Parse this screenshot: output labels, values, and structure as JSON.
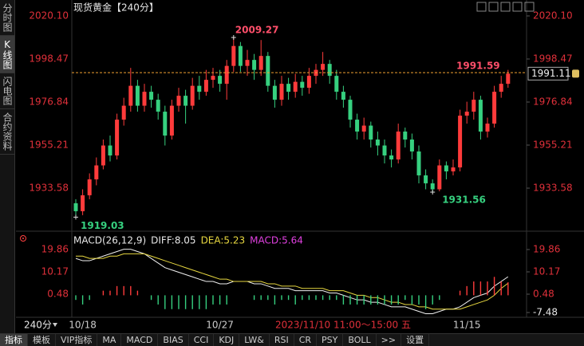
{
  "chart_data": [
    {
      "type": "candlestick",
      "title": "现货黄金【240分】",
      "categories": [
        null,
        "10/18",
        null,
        null,
        null,
        null,
        null,
        null,
        null,
        null,
        null,
        null,
        null,
        null,
        null,
        null,
        null,
        null,
        null,
        null,
        null,
        "10/27",
        null,
        null,
        null,
        null,
        null,
        null,
        null,
        null,
        null,
        null,
        null,
        null,
        null,
        null,
        null,
        null,
        null,
        null,
        null,
        null,
        null,
        null,
        null,
        null,
        null,
        null,
        null,
        null,
        null,
        null,
        null,
        null,
        null,
        null,
        null,
        "11/15",
        null,
        null,
        null,
        null,
        null,
        null
      ],
      "open": [
        1926,
        1922,
        1930,
        1938,
        1945,
        1955,
        1950,
        1968,
        1975,
        1985,
        1975,
        1982,
        1978,
        1972,
        1960,
        1975,
        1980,
        1975,
        1985,
        1982,
        1988,
        1990,
        1986,
        1995,
        2005,
        1995,
        1998,
        1993,
        2000,
        1985,
        1978,
        1986,
        1982,
        1987,
        1984,
        1990,
        1993,
        1996,
        1990,
        1982,
        1978,
        1968,
        1962,
        1965,
        1958,
        1955,
        1950,
        1948,
        1962,
        1958,
        1952,
        1940,
        1936,
        1933,
        1945,
        1942,
        1944,
        1970,
        1972,
        1978,
        1962,
        1966,
        1982,
        1986
      ],
      "high": [
        1928,
        1933,
        1941,
        1949,
        1958,
        1960,
        1971,
        1979,
        1994,
        1988,
        1986,
        1985,
        1981,
        1975,
        1978,
        1984,
        1983,
        1989,
        1990,
        1993,
        1994,
        1993,
        1998,
        2009.27,
        2007,
        2003,
        2001,
        2008,
        2002,
        1988,
        1990,
        1989,
        1991,
        1990,
        1994,
        1996,
        2002,
        1998,
        1993,
        1985,
        1980,
        1971,
        1969,
        1967,
        1962,
        1958,
        1953,
        1966,
        1964,
        1961,
        1955,
        1943,
        1938,
        1948,
        1947,
        1948,
        1973,
        1977,
        1982,
        1980,
        1969,
        1985,
        1990,
        1993
      ],
      "low": [
        1919.03,
        1920,
        1928,
        1935,
        1943,
        1947,
        1948,
        1965,
        1972,
        1972,
        1972,
        1974,
        1968,
        1955,
        1958,
        1972,
        1966,
        1973,
        1978,
        1980,
        1984,
        1982,
        1978,
        1992,
        1992,
        1990,
        1988,
        1990,
        1982,
        1974,
        1975,
        1978,
        1979,
        1980,
        1981,
        1986,
        1990,
        1986,
        1978,
        1974,
        1964,
        1958,
        1958,
        1954,
        1950,
        1946,
        1944,
        1946,
        1954,
        1948,
        1936,
        1933,
        1931.56,
        1932,
        1938,
        1940,
        1942,
        1966,
        1968,
        1958,
        1959,
        1964,
        1979,
        1984
      ],
      "close": [
        1922,
        1930,
        1938,
        1945,
        1955,
        1950,
        1968,
        1975,
        1985,
        1975,
        1982,
        1978,
        1972,
        1960,
        1975,
        1980,
        1975,
        1985,
        1982,
        1988,
        1990,
        1986,
        1995,
        2005,
        1995,
        1998,
        1993,
        2000,
        1985,
        1978,
        1986,
        1982,
        1987,
        1984,
        1990,
        1993,
        1996,
        1990,
        1982,
        1978,
        1968,
        1962,
        1965,
        1958,
        1955,
        1950,
        1948,
        1962,
        1958,
        1952,
        1940,
        1936,
        1933,
        1945,
        1942,
        1944,
        1970,
        1972,
        1978,
        1962,
        1966,
        1982,
        1986,
        1991.11
      ],
      "up_color": "#ff3b3b",
      "down_color": "#36d07f",
      "ylim": [
        1913.95,
        2024.9
      ],
      "yticks": [
        {
          "value": 2020.1,
          "label": "2020.10"
        },
        1998.47,
        1976.84,
        1955.21,
        1933.58
      ],
      "annotations": {
        "high": 2009.27,
        "low": 1919.03,
        "recent_low": 1931.56,
        "reference_price": 1991.59,
        "last_price": 1991.11
      },
      "crosshair_label": "2023/11/10 11:00～15:00 五"
    },
    {
      "type": "macd",
      "legend": [
        "MACD(26,12,9)",
        "DIFF:8.05",
        "DEA:5.23",
        "MACD:5.64"
      ],
      "legend_colors": [
        "#e8e8e8",
        "#e8e8e8",
        "#e8d840",
        "#e040e0"
      ],
      "series": [
        {
          "name": "DIFF",
          "color": "#f0f0f0",
          "values": [
            16,
            15,
            15,
            16,
            17,
            18,
            19,
            20,
            20,
            19,
            18,
            16,
            14,
            12,
            11,
            10,
            9,
            8,
            7,
            6,
            6,
            5,
            5,
            6,
            6,
            6,
            5,
            5,
            4,
            3,
            3,
            3,
            2,
            2,
            2,
            2,
            2,
            1,
            1,
            0,
            -1,
            -2,
            -2,
            -3,
            -3,
            -4,
            -5,
            -5,
            -5,
            -6,
            -7,
            -8,
            -8,
            -7,
            -6,
            -6,
            -5,
            -3,
            -1,
            0,
            1,
            4,
            6,
            8.05
          ]
        },
        {
          "name": "DEA",
          "color": "#e8d840",
          "values": [
            17,
            17,
            16,
            16,
            16,
            17,
            17,
            18,
            18,
            18,
            18,
            17,
            16,
            15,
            14,
            13,
            12,
            11,
            10,
            9,
            8,
            7,
            7,
            6,
            6,
            6,
            6,
            6,
            5,
            5,
            4,
            4,
            4,
            3,
            3,
            3,
            3,
            2,
            2,
            2,
            1,
            0,
            0,
            -1,
            -1,
            -2,
            -3,
            -3,
            -4,
            -4,
            -5,
            -5,
            -6,
            -6,
            -6,
            -6,
            -6,
            -5,
            -4,
            -3,
            -2,
            0,
            3,
            5.23
          ]
        },
        {
          "name": "MACD",
          "values": [
            -2,
            -4,
            -2,
            0,
            2,
            2,
            4,
            4,
            4,
            2,
            0,
            -2,
            -4,
            -6,
            -6,
            -6,
            -6,
            -6,
            -6,
            -6,
            -4,
            -4,
            -4,
            0,
            0,
            0,
            -2,
            -2,
            -2,
            -4,
            -2,
            -2,
            -4,
            -2,
            -2,
            -2,
            -2,
            -2,
            -2,
            -4,
            -4,
            -4,
            -4,
            -4,
            -4,
            -4,
            -4,
            -4,
            -2,
            -4,
            -4,
            -6,
            -4,
            -2,
            0,
            0,
            2,
            4,
            6,
            6,
            6,
            8,
            6,
            5.64
          ]
        }
      ],
      "up_color": "#ff3b3b",
      "down_color": "#36d07f",
      "ylim": [
        -9.55,
        25.05
      ],
      "yticks": [
        19.86,
        10.17,
        0.48
      ],
      "y2lim": [
        -9.55,
        25.05
      ],
      "y2ticks": [
        19.86,
        10.17,
        0.48,
        -7.48
      ]
    }
  ],
  "ui": {
    "sidebar": [
      "分时图",
      "K线图",
      "闪电图",
      "合约资料"
    ],
    "selected_sidebar": 1,
    "period": "240分",
    "tabs": [
      "指标",
      "模板",
      "VIP指标",
      "MA",
      "MACD",
      "BIAS",
      "CCI",
      "KDJ",
      "LW&",
      "RSI",
      "CR",
      "PSY",
      "BOLL",
      ">>",
      "设置"
    ],
    "selected_tab": 0
  }
}
